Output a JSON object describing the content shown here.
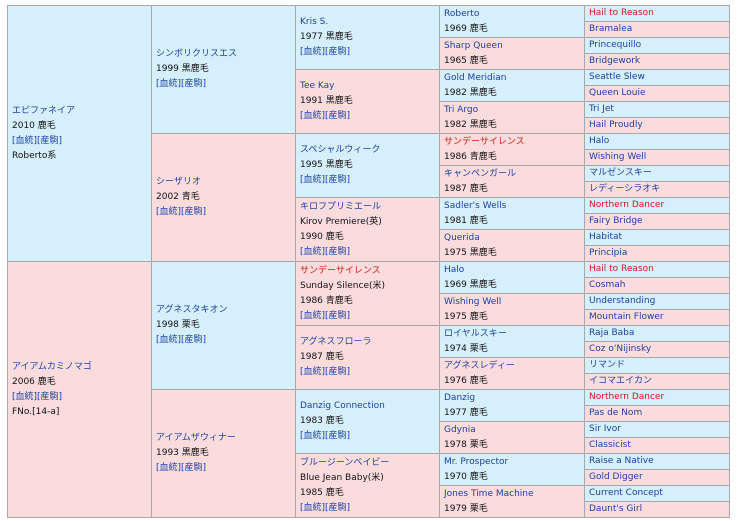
{
  "gen1": [
    {
      "name": "エピファネイア",
      "line1": "2010 鹿毛",
      "links": "[血統][産駒]",
      "extra": "Roberto系"
    },
    {
      "name": "アイアムカミノマゴ",
      "line1": "2006 鹿毛",
      "links": "[血統][産駒]",
      "extra": "FNo.[14-a]"
    }
  ],
  "gen2": [
    {
      "name": "シンボリクリスエス",
      "line1": "1999 黒鹿毛",
      "links": "[血統][産駒]"
    },
    {
      "name": "シーザリオ",
      "line1": "2002 青毛",
      "links": "[血統][産駒]"
    },
    {
      "name": "アグネスタキオン",
      "line1": "1998 栗毛",
      "links": "[血統][産駒]"
    },
    {
      "name": "アイアムザウィナー",
      "line1": "1993 黒鹿毛",
      "links": "[血統][産駒]"
    }
  ],
  "gen3": [
    {
      "name": "Kris S.",
      "sub": "",
      "line1": "1977 黒鹿毛",
      "links": "[血統][産駒]"
    },
    {
      "name": "Tee Kay",
      "sub": "",
      "line1": "1991 黒鹿毛",
      "links": "[血統][産駒]"
    },
    {
      "name": "スペシャルウィーク",
      "sub": "",
      "line1": "1995 黒鹿毛",
      "links": "[血統][産駒]"
    },
    {
      "name": "キロフプリミエール",
      "sub": "Kirov Premiere(英)",
      "line1": "1990 鹿毛",
      "links": "[血統][産駒]"
    },
    {
      "name": "サンデーサイレンス",
      "sub": "Sunday Silence(米)",
      "line1": "1986 青鹿毛",
      "links": "[血統][産駒]"
    },
    {
      "name": "アグネスフローラ",
      "sub": "",
      "line1": "1987 鹿毛",
      "links": "[血統][産駒]"
    },
    {
      "name": "Danzig Connection",
      "sub": "",
      "line1": "1983 鹿毛",
      "links": "[血統][産駒]"
    },
    {
      "name": "ブルージーンベイビー",
      "sub": "Blue Jean Baby(米)",
      "line1": "1985 鹿毛",
      "links": "[血統][産駒]"
    }
  ],
  "gen4": [
    {
      "name": "Roberto",
      "line1": "1969 鹿毛"
    },
    {
      "name": "Sharp Queen",
      "line1": "1965 鹿毛"
    },
    {
      "name": "Gold Meridian",
      "line1": "1982 黒鹿毛"
    },
    {
      "name": "Tri Argo",
      "line1": "1982 黒鹿毛"
    },
    {
      "name": "サンデーサイレンス",
      "line1": "1986 青鹿毛"
    },
    {
      "name": "キャンペンガール",
      "line1": "1987 鹿毛"
    },
    {
      "name": "Sadler's Wells",
      "line1": "1981 鹿毛"
    },
    {
      "name": "Querida",
      "line1": "1975 黒鹿毛"
    },
    {
      "name": "Halo",
      "line1": "1969 黒鹿毛"
    },
    {
      "name": "Wishing Well",
      "line1": "1975 鹿毛"
    },
    {
      "name": "ロイヤルスキー",
      "line1": "1974 栗毛"
    },
    {
      "name": "アグネスレディー",
      "line1": "1976 鹿毛"
    },
    {
      "name": "Danzig",
      "line1": "1977 鹿毛"
    },
    {
      "name": "Gdynia",
      "line1": "1978 栗毛"
    },
    {
      "name": "Mr. Prospector",
      "line1": "1970 鹿毛"
    },
    {
      "name": "Jones Time Machine",
      "line1": "1979 栗毛"
    }
  ],
  "gen5": [
    "Hail to Reason",
    "Bramalea",
    "Princequillo",
    "Bridgework",
    "Seattle Slew",
    "Queen Louie",
    "Tri Jet",
    "Hail Proudly",
    "Halo",
    "Wishing Well",
    "マルゼンスキー",
    "レディーシラオキ",
    "Northern Dancer",
    "Fairy Bridge",
    "Habitat",
    "Principia",
    "Hail to Reason",
    "Cosmah",
    "Understanding",
    "Mountain Flower",
    "Raja Baba",
    "Coz o'Nijinsky",
    "リマンド",
    "イコマエイカン",
    "Northern Dancer",
    "Pas de Nom",
    "Sir Ivor",
    "Classicist",
    "Raise a Native",
    "Gold Digger",
    "Current Concept",
    "Daunt's Girl"
  ]
}
